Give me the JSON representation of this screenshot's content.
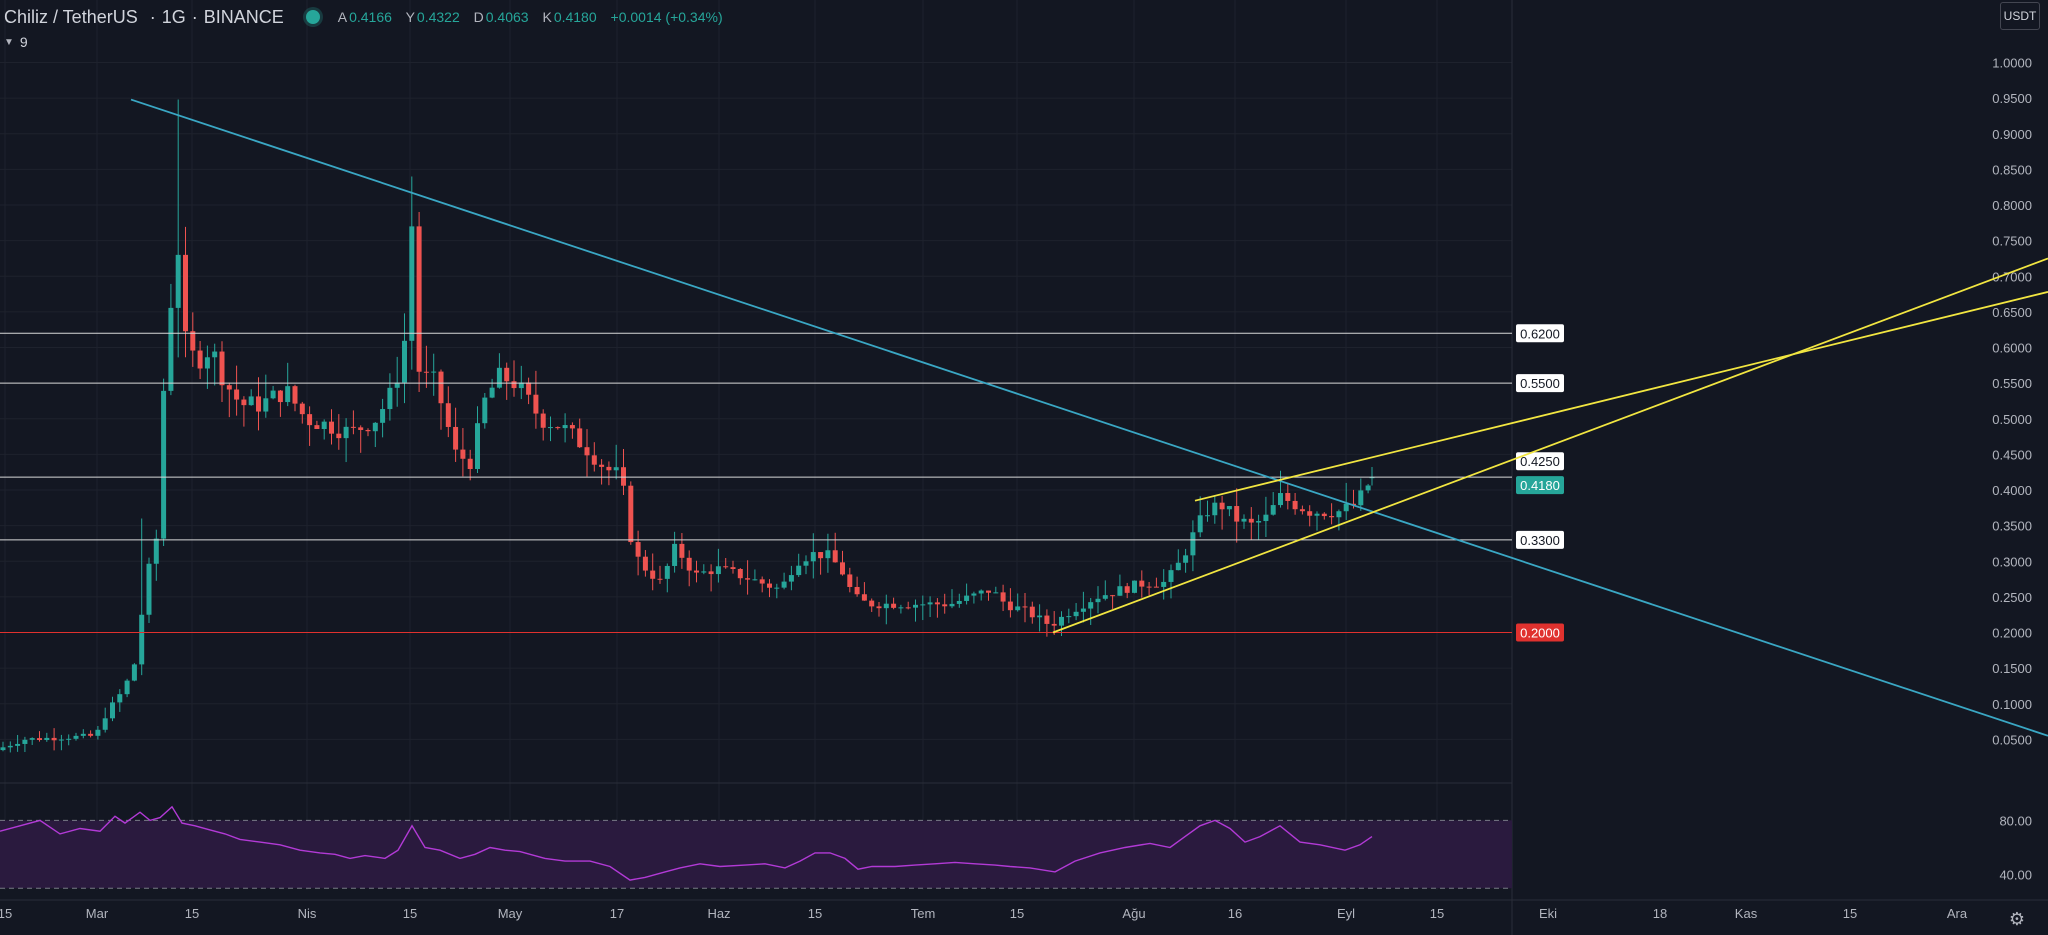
{
  "legend": {
    "symbol": "Chiliz / TetherUS",
    "interval": "1G",
    "exchange": "BINANCE",
    "ohlc": [
      {
        "k": "A",
        "v": "0.4166"
      },
      {
        "k": "Y",
        "v": "0.4322"
      },
      {
        "k": "D",
        "v": "0.4063"
      },
      {
        "k": "K",
        "v": "0.4180"
      },
      {
        "k": "",
        "v": "+0.0014 (+0.34%)"
      }
    ]
  },
  "indicator_badge": "9",
  "quote_unit": "USDT",
  "colors": {
    "background": "#131722",
    "up": "#26a69a",
    "down": "#ef5350",
    "trend_blue": "#3aa7c4",
    "trend_yellow": "#f2e641",
    "rsi_line": "#b23ad6",
    "rsi_band": "#2a1a3e",
    "grid": "#1e222d",
    "hline_white": "#d8d8d8",
    "hline_red": "#e0312e"
  },
  "chart_data": {
    "type": "candlestick",
    "price_axis": {
      "ylim": [
        0.0,
        1.04
      ],
      "ticks": [
        "1.0000",
        "0.9500",
        "0.9000",
        "0.8500",
        "0.8000",
        "0.7500",
        "0.7000",
        "0.6500",
        "0.6000",
        "0.5500",
        "0.5000",
        "0.4500",
        "0.4000",
        "0.3500",
        "0.3000",
        "0.2500",
        "0.2000",
        "0.1500",
        "0.1000",
        "0.0500"
      ]
    },
    "time_axis": {
      "labels": [
        "15",
        "Mar",
        "15",
        "Nis",
        "15",
        "May",
        "17",
        "Haz",
        "15",
        "Tem",
        "15",
        "Ağu",
        "16",
        "Eyl",
        "15",
        "Eki",
        "18",
        "Kas",
        "15",
        "Ara"
      ]
    },
    "horizontal_levels": [
      {
        "value": 0.62,
        "label": "0.6200",
        "color": "#d8d8d8"
      },
      {
        "value": 0.55,
        "label": "0.5500",
        "color": "#d8d8d8"
      },
      {
        "value": 0.418,
        "label": "",
        "color": "#d8d8d8"
      },
      {
        "value": 0.33,
        "label": "0.3300",
        "color": "#d8d8d8"
      },
      {
        "value": 0.2,
        "label": "0.2000",
        "color": "#e0312e"
      }
    ],
    "price_tags": [
      {
        "value": 0.425,
        "label": "0.4250",
        "style": "plain"
      },
      {
        "value": 0.418,
        "label": "0.4180",
        "style": "last"
      }
    ],
    "trend_lines": [
      {
        "color": "#3aa7c4",
        "from": [
          131,
          0.948
        ],
        "to": [
          2048,
          0.055
        ]
      },
      {
        "color": "#f2e641",
        "from": [
          1053,
          0.2
        ],
        "to": [
          2048,
          0.725
        ]
      },
      {
        "color": "#f2e641",
        "from": [
          1195,
          0.385
        ],
        "to": [
          2048,
          0.678
        ]
      }
    ],
    "candles_anchor_path": [
      [
        0,
        0.035
      ],
      [
        28,
        0.05
      ],
      [
        100,
        0.055
      ],
      [
        112,
        0.09
      ],
      [
        128,
        0.12
      ],
      [
        140,
        0.16
      ],
      [
        150,
        0.27
      ],
      [
        162,
        0.34
      ],
      [
        172,
        0.68
      ],
      [
        185,
        0.62
      ],
      [
        200,
        0.58
      ],
      [
        215,
        0.6
      ],
      [
        230,
        0.55
      ],
      [
        245,
        0.52
      ],
      [
        265,
        0.52
      ],
      [
        290,
        0.54
      ],
      [
        310,
        0.5
      ],
      [
        335,
        0.49
      ],
      [
        355,
        0.48
      ],
      [
        380,
        0.5
      ],
      [
        398,
        0.54
      ],
      [
        412,
        0.63
      ],
      [
        425,
        0.56
      ],
      [
        440,
        0.55
      ],
      [
        460,
        0.45
      ],
      [
        475,
        0.44
      ],
      [
        490,
        0.53
      ],
      [
        505,
        0.56
      ],
      [
        520,
        0.55
      ],
      [
        545,
        0.5
      ],
      [
        565,
        0.49
      ],
      [
        590,
        0.46
      ],
      [
        610,
        0.43
      ],
      [
        625,
        0.42
      ],
      [
        638,
        0.31
      ],
      [
        650,
        0.29
      ],
      [
        665,
        0.27
      ],
      [
        680,
        0.32
      ],
      [
        700,
        0.28
      ],
      [
        720,
        0.29
      ],
      [
        745,
        0.28
      ],
      [
        765,
        0.27
      ],
      [
        785,
        0.26
      ],
      [
        800,
        0.3
      ],
      [
        815,
        0.31
      ],
      [
        830,
        0.31
      ],
      [
        845,
        0.29
      ],
      [
        858,
        0.25
      ],
      [
        872,
        0.24
      ],
      [
        895,
        0.24
      ],
      [
        915,
        0.24
      ],
      [
        935,
        0.24
      ],
      [
        955,
        0.24
      ],
      [
        975,
        0.25
      ],
      [
        995,
        0.26
      ],
      [
        1010,
        0.24
      ],
      [
        1030,
        0.23
      ],
      [
        1055,
        0.21
      ],
      [
        1075,
        0.23
      ],
      [
        1100,
        0.25
      ],
      [
        1125,
        0.26
      ],
      [
        1150,
        0.27
      ],
      [
        1170,
        0.27
      ],
      [
        1185,
        0.3
      ],
      [
        1195,
        0.33
      ],
      [
        1210,
        0.37
      ],
      [
        1225,
        0.38
      ],
      [
        1240,
        0.36
      ],
      [
        1255,
        0.35
      ],
      [
        1270,
        0.36
      ],
      [
        1285,
        0.39
      ],
      [
        1300,
        0.38
      ],
      [
        1315,
        0.37
      ],
      [
        1330,
        0.37
      ],
      [
        1345,
        0.37
      ],
      [
        1360,
        0.38
      ],
      [
        1372,
        0.405
      ],
      [
        1375,
        0.418
      ]
    ],
    "rsi": {
      "label_ticks": [
        "80.00",
        "40.00"
      ],
      "upper_band": 80,
      "lower_band": 30,
      "ylim": [
        25,
        95
      ],
      "path": [
        [
          0,
          72
        ],
        [
          20,
          76
        ],
        [
          40,
          80
        ],
        [
          60,
          70
        ],
        [
          80,
          74
        ],
        [
          100,
          72
        ],
        [
          115,
          83
        ],
        [
          125,
          78
        ],
        [
          140,
          86
        ],
        [
          150,
          80
        ],
        [
          160,
          82
        ],
        [
          172,
          90
        ],
        [
          182,
          78
        ],
        [
          195,
          76
        ],
        [
          210,
          73
        ],
        [
          225,
          70
        ],
        [
          240,
          66
        ],
        [
          260,
          64
        ],
        [
          280,
          62
        ],
        [
          300,
          58
        ],
        [
          320,
          56
        ],
        [
          335,
          55
        ],
        [
          350,
          52
        ],
        [
          365,
          54
        ],
        [
          385,
          52
        ],
        [
          398,
          58
        ],
        [
          412,
          76
        ],
        [
          425,
          60
        ],
        [
          440,
          58
        ],
        [
          460,
          52
        ],
        [
          475,
          55
        ],
        [
          490,
          60
        ],
        [
          505,
          58
        ],
        [
          520,
          57
        ],
        [
          545,
          52
        ],
        [
          565,
          50
        ],
        [
          590,
          50
        ],
        [
          610,
          46
        ],
        [
          630,
          36
        ],
        [
          645,
          38
        ],
        [
          665,
          42
        ],
        [
          680,
          45
        ],
        [
          700,
          48
        ],
        [
          720,
          46
        ],
        [
          745,
          47
        ],
        [
          765,
          48
        ],
        [
          785,
          45
        ],
        [
          800,
          50
        ],
        [
          815,
          56
        ],
        [
          830,
          56
        ],
        [
          845,
          52
        ],
        [
          858,
          44
        ],
        [
          872,
          46
        ],
        [
          895,
          46
        ],
        [
          915,
          47
        ],
        [
          935,
          48
        ],
        [
          955,
          49
        ],
        [
          975,
          48
        ],
        [
          995,
          47
        ],
        [
          1010,
          46
        ],
        [
          1030,
          45
        ],
        [
          1055,
          42
        ],
        [
          1075,
          50
        ],
        [
          1100,
          56
        ],
        [
          1125,
          60
        ],
        [
          1150,
          63
        ],
        [
          1170,
          60
        ],
        [
          1185,
          68
        ],
        [
          1200,
          76
        ],
        [
          1215,
          80
        ],
        [
          1230,
          74
        ],
        [
          1245,
          64
        ],
        [
          1260,
          68
        ],
        [
          1280,
          76
        ],
        [
          1300,
          64
        ],
        [
          1320,
          62
        ],
        [
          1345,
          58
        ],
        [
          1360,
          62
        ],
        [
          1372,
          68
        ]
      ]
    }
  }
}
